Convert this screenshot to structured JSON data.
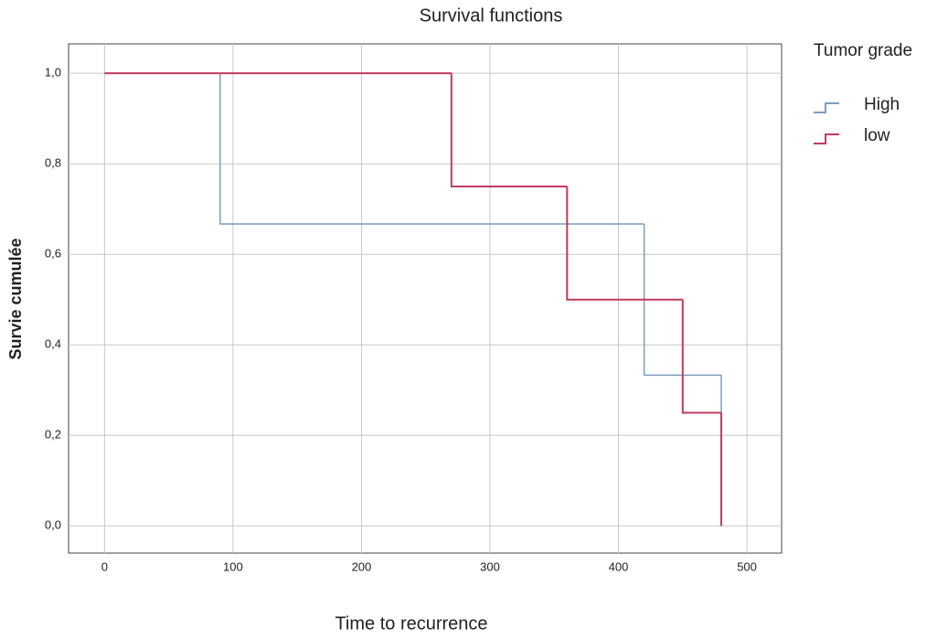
{
  "chart_data": {
    "type": "step",
    "title": "Survival functions",
    "x_label": "Time to recurrence",
    "y_label": "Survie cumulée",
    "legend_title": "Tumor grade",
    "xlim": [
      -28,
      527
    ],
    "ylim": [
      -0.06,
      1.065
    ],
    "xticks": [
      0,
      100,
      200,
      300,
      400,
      500
    ],
    "yticks": [
      {
        "value": 0,
        "label": "0,0"
      },
      {
        "value": 0.2,
        "label": "0,2"
      },
      {
        "value": 0.4,
        "label": "0,4"
      },
      {
        "value": 0.6,
        "label": "0,6"
      },
      {
        "value": 0.8,
        "label": "0,8"
      },
      {
        "value": 1,
        "label": "1,0"
      }
    ],
    "grid": true,
    "series": [
      {
        "name": "High",
        "color": "#7d9cbd",
        "x": [
          0,
          90,
          420,
          480
        ],
        "values": [
          1,
          0.667,
          0.333,
          0
        ]
      },
      {
        "name": "low",
        "color": "#c23a5e",
        "x": [
          0,
          270,
          360,
          450,
          480
        ],
        "values": [
          1,
          0.75,
          0.5,
          0.25,
          0
        ]
      }
    ]
  }
}
